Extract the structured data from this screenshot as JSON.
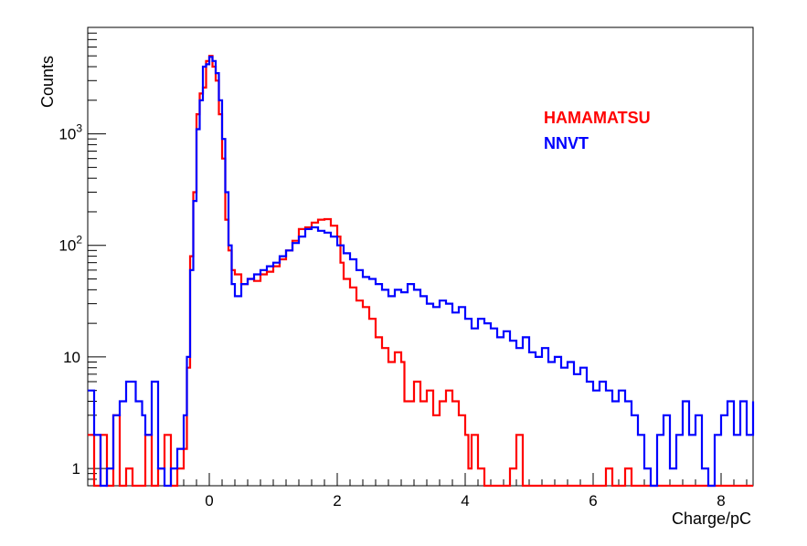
{
  "chart_data": {
    "type": "line",
    "step": true,
    "title": "",
    "xlabel": "Charge/pC",
    "ylabel": "Counts",
    "xlim": [
      -1.9,
      8.5
    ],
    "ylim": [
      0.7,
      9000
    ],
    "yscale": "log",
    "grid": false,
    "legend_position": "top-right",
    "x_ticks": [
      {
        "value": 0,
        "label": "0"
      },
      {
        "value": 2,
        "label": "2"
      },
      {
        "value": 4,
        "label": "4"
      },
      {
        "value": 6,
        "label": "6"
      },
      {
        "value": 8,
        "label": "8"
      }
    ],
    "y_ticks": [
      {
        "value": 1,
        "label": "1"
      },
      {
        "value": 10,
        "label": "10"
      },
      {
        "value": 100,
        "label": "10",
        "exp": "2"
      },
      {
        "value": 1000,
        "label": "10",
        "exp": "3"
      }
    ],
    "series": [
      {
        "name": "HAMAMATSU",
        "color": "#ff0000",
        "points": [
          [
            -1.9,
            2
          ],
          [
            -1.8,
            0.7
          ],
          [
            -1.7,
            2
          ],
          [
            -1.6,
            0.7
          ],
          [
            -1.5,
            3
          ],
          [
            -1.4,
            0.7
          ],
          [
            -1.3,
            1
          ],
          [
            -1.2,
            0.7
          ],
          [
            -1.0,
            2
          ],
          [
            -0.9,
            0.7
          ],
          [
            -0.8,
            1
          ],
          [
            -0.7,
            2
          ],
          [
            -0.6,
            0.7
          ],
          [
            -0.5,
            1
          ],
          [
            -0.4,
            1.5
          ],
          [
            -0.35,
            8
          ],
          [
            -0.3,
            80
          ],
          [
            -0.25,
            300
          ],
          [
            -0.2,
            1500
          ],
          [
            -0.15,
            2300
          ],
          [
            -0.1,
            2600
          ],
          [
            -0.05,
            4500
          ],
          [
            0.0,
            5000
          ],
          [
            0.05,
            4000
          ],
          [
            0.1,
            3000
          ],
          [
            0.15,
            1500
          ],
          [
            0.2,
            600
          ],
          [
            0.25,
            170
          ],
          [
            0.3,
            90
          ],
          [
            0.35,
            60
          ],
          [
            0.4,
            55
          ],
          [
            0.5,
            45
          ],
          [
            0.6,
            50
          ],
          [
            0.7,
            48
          ],
          [
            0.8,
            55
          ],
          [
            0.9,
            58
          ],
          [
            1.0,
            65
          ],
          [
            1.1,
            75
          ],
          [
            1.2,
            90
          ],
          [
            1.3,
            110
          ],
          [
            1.4,
            140
          ],
          [
            1.5,
            145
          ],
          [
            1.6,
            160
          ],
          [
            1.7,
            170
          ],
          [
            1.8,
            172
          ],
          [
            1.9,
            150
          ],
          [
            2.0,
            120
          ],
          [
            2.05,
            70
          ],
          [
            2.1,
            50
          ],
          [
            2.2,
            42
          ],
          [
            2.3,
            32
          ],
          [
            2.4,
            28
          ],
          [
            2.5,
            22
          ],
          [
            2.6,
            15
          ],
          [
            2.7,
            12
          ],
          [
            2.8,
            9
          ],
          [
            2.9,
            11
          ],
          [
            3.0,
            9
          ],
          [
            3.05,
            4
          ],
          [
            3.2,
            6
          ],
          [
            3.3,
            4
          ],
          [
            3.4,
            5
          ],
          [
            3.5,
            3
          ],
          [
            3.6,
            4
          ],
          [
            3.7,
            5
          ],
          [
            3.8,
            4
          ],
          [
            3.9,
            3
          ],
          [
            4.0,
            2
          ],
          [
            4.05,
            1
          ],
          [
            4.1,
            2
          ],
          [
            4.2,
            1
          ],
          [
            4.3,
            0.7
          ],
          [
            4.7,
            1
          ],
          [
            4.8,
            2
          ],
          [
            4.9,
            0.7
          ],
          [
            6.2,
            1
          ],
          [
            6.3,
            0.7
          ],
          [
            6.5,
            1
          ],
          [
            6.6,
            0.7
          ],
          [
            8.5,
            0.7
          ]
        ]
      },
      {
        "name": "NNVT",
        "color": "#0000ff",
        "points": [
          [
            -1.9,
            5
          ],
          [
            -1.8,
            2
          ],
          [
            -1.7,
            0.7
          ],
          [
            -1.6,
            1
          ],
          [
            -1.5,
            3
          ],
          [
            -1.4,
            4
          ],
          [
            -1.3,
            6
          ],
          [
            -1.15,
            4
          ],
          [
            -1.05,
            3
          ],
          [
            -1.0,
            2
          ],
          [
            -0.9,
            6
          ],
          [
            -0.8,
            1
          ],
          [
            -0.7,
            0.7
          ],
          [
            -0.6,
            1
          ],
          [
            -0.5,
            1.5
          ],
          [
            -0.4,
            3
          ],
          [
            -0.35,
            10
          ],
          [
            -0.3,
            60
          ],
          [
            -0.25,
            250
          ],
          [
            -0.2,
            1100
          ],
          [
            -0.15,
            2000
          ],
          [
            -0.1,
            4000
          ],
          [
            -0.05,
            4200
          ],
          [
            0.0,
            4900
          ],
          [
            0.05,
            4500
          ],
          [
            0.1,
            3500
          ],
          [
            0.15,
            2000
          ],
          [
            0.2,
            900
          ],
          [
            0.25,
            300
          ],
          [
            0.3,
            100
          ],
          [
            0.35,
            45
          ],
          [
            0.4,
            35
          ],
          [
            0.5,
            45
          ],
          [
            0.6,
            50
          ],
          [
            0.7,
            55
          ],
          [
            0.8,
            60
          ],
          [
            0.9,
            65
          ],
          [
            1.0,
            70
          ],
          [
            1.1,
            80
          ],
          [
            1.2,
            90
          ],
          [
            1.3,
            105
          ],
          [
            1.4,
            120
          ],
          [
            1.5,
            140
          ],
          [
            1.6,
            145
          ],
          [
            1.7,
            135
          ],
          [
            1.8,
            130
          ],
          [
            1.9,
            120
          ],
          [
            2.0,
            100
          ],
          [
            2.1,
            85
          ],
          [
            2.2,
            75
          ],
          [
            2.3,
            60
          ],
          [
            2.4,
            52
          ],
          [
            2.5,
            50
          ],
          [
            2.6,
            45
          ],
          [
            2.7,
            40
          ],
          [
            2.8,
            35
          ],
          [
            2.9,
            40
          ],
          [
            3.0,
            38
          ],
          [
            3.1,
            45
          ],
          [
            3.2,
            40
          ],
          [
            3.3,
            35
          ],
          [
            3.4,
            30
          ],
          [
            3.5,
            28
          ],
          [
            3.6,
            32
          ],
          [
            3.7,
            30
          ],
          [
            3.8,
            25
          ],
          [
            3.9,
            28
          ],
          [
            4.0,
            22
          ],
          [
            4.1,
            18
          ],
          [
            4.2,
            22
          ],
          [
            4.3,
            20
          ],
          [
            4.4,
            18
          ],
          [
            4.5,
            15
          ],
          [
            4.6,
            17
          ],
          [
            4.7,
            14
          ],
          [
            4.8,
            12
          ],
          [
            4.9,
            15
          ],
          [
            5.0,
            11
          ],
          [
            5.1,
            10
          ],
          [
            5.2,
            12
          ],
          [
            5.3,
            9
          ],
          [
            5.4,
            10
          ],
          [
            5.5,
            8
          ],
          [
            5.6,
            9
          ],
          [
            5.7,
            7
          ],
          [
            5.8,
            8
          ],
          [
            5.9,
            6
          ],
          [
            6.0,
            5
          ],
          [
            6.1,
            6
          ],
          [
            6.2,
            5
          ],
          [
            6.3,
            4
          ],
          [
            6.4,
            5
          ],
          [
            6.5,
            4
          ],
          [
            6.6,
            3
          ],
          [
            6.7,
            2
          ],
          [
            6.8,
            1
          ],
          [
            6.9,
            0.7
          ],
          [
            7.0,
            2
          ],
          [
            7.1,
            3
          ],
          [
            7.2,
            1
          ],
          [
            7.3,
            2
          ],
          [
            7.4,
            4
          ],
          [
            7.5,
            2
          ],
          [
            7.6,
            3
          ],
          [
            7.7,
            1
          ],
          [
            7.8,
            0.7
          ],
          [
            7.9,
            2
          ],
          [
            8.0,
            3
          ],
          [
            8.1,
            4
          ],
          [
            8.2,
            2
          ],
          [
            8.3,
            4
          ],
          [
            8.4,
            2
          ],
          [
            8.5,
            4
          ]
        ]
      }
    ]
  }
}
